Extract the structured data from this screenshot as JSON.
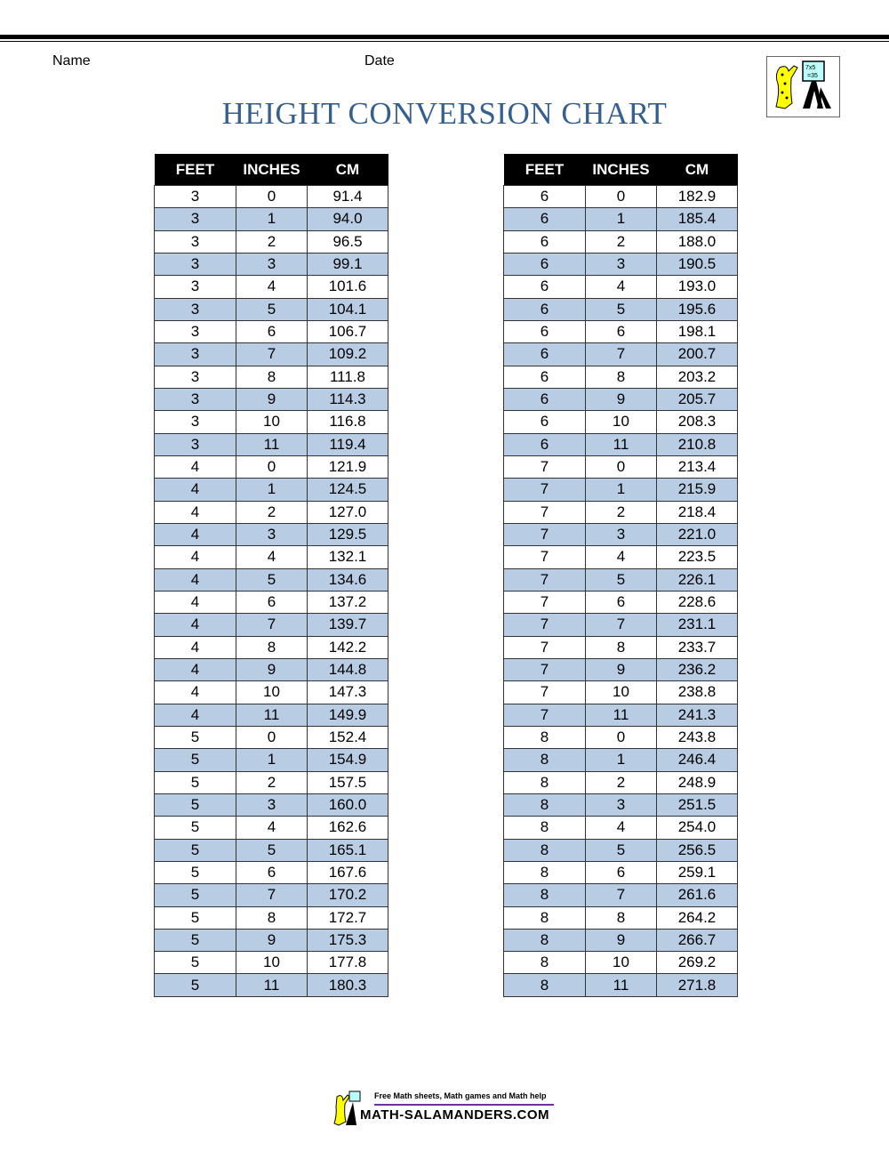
{
  "header": {
    "name_label": "Name",
    "date_label": "Date",
    "title": "HEIGHT CONVERSION CHART",
    "logo_text": "7x5 =35"
  },
  "columns": [
    "FEET",
    "INCHES",
    "CM"
  ],
  "left_table": [
    [
      "3",
      "0",
      "91.4"
    ],
    [
      "3",
      "1",
      "94.0"
    ],
    [
      "3",
      "2",
      "96.5"
    ],
    [
      "3",
      "3",
      "99.1"
    ],
    [
      "3",
      "4",
      "101.6"
    ],
    [
      "3",
      "5",
      "104.1"
    ],
    [
      "3",
      "6",
      "106.7"
    ],
    [
      "3",
      "7",
      "109.2"
    ],
    [
      "3",
      "8",
      "111.8"
    ],
    [
      "3",
      "9",
      "114.3"
    ],
    [
      "3",
      "10",
      "116.8"
    ],
    [
      "3",
      "11",
      "119.4"
    ],
    [
      "4",
      "0",
      "121.9"
    ],
    [
      "4",
      "1",
      "124.5"
    ],
    [
      "4",
      "2",
      "127.0"
    ],
    [
      "4",
      "3",
      "129.5"
    ],
    [
      "4",
      "4",
      "132.1"
    ],
    [
      "4",
      "5",
      "134.6"
    ],
    [
      "4",
      "6",
      "137.2"
    ],
    [
      "4",
      "7",
      "139.7"
    ],
    [
      "4",
      "8",
      "142.2"
    ],
    [
      "4",
      "9",
      "144.8"
    ],
    [
      "4",
      "10",
      "147.3"
    ],
    [
      "4",
      "11",
      "149.9"
    ],
    [
      "5",
      "0",
      "152.4"
    ],
    [
      "5",
      "1",
      "154.9"
    ],
    [
      "5",
      "2",
      "157.5"
    ],
    [
      "5",
      "3",
      "160.0"
    ],
    [
      "5",
      "4",
      "162.6"
    ],
    [
      "5",
      "5",
      "165.1"
    ],
    [
      "5",
      "6",
      "167.6"
    ],
    [
      "5",
      "7",
      "170.2"
    ],
    [
      "5",
      "8",
      "172.7"
    ],
    [
      "5",
      "9",
      "175.3"
    ],
    [
      "5",
      "10",
      "177.8"
    ],
    [
      "5",
      "11",
      "180.3"
    ]
  ],
  "right_table": [
    [
      "6",
      "0",
      "182.9"
    ],
    [
      "6",
      "1",
      "185.4"
    ],
    [
      "6",
      "2",
      "188.0"
    ],
    [
      "6",
      "3",
      "190.5"
    ],
    [
      "6",
      "4",
      "193.0"
    ],
    [
      "6",
      "5",
      "195.6"
    ],
    [
      "6",
      "6",
      "198.1"
    ],
    [
      "6",
      "7",
      "200.7"
    ],
    [
      "6",
      "8",
      "203.2"
    ],
    [
      "6",
      "9",
      "205.7"
    ],
    [
      "6",
      "10",
      "208.3"
    ],
    [
      "6",
      "11",
      "210.8"
    ],
    [
      "7",
      "0",
      "213.4"
    ],
    [
      "7",
      "1",
      "215.9"
    ],
    [
      "7",
      "2",
      "218.4"
    ],
    [
      "7",
      "3",
      "221.0"
    ],
    [
      "7",
      "4",
      "223.5"
    ],
    [
      "7",
      "5",
      "226.1"
    ],
    [
      "7",
      "6",
      "228.6"
    ],
    [
      "7",
      "7",
      "231.1"
    ],
    [
      "7",
      "8",
      "233.7"
    ],
    [
      "7",
      "9",
      "236.2"
    ],
    [
      "7",
      "10",
      "238.8"
    ],
    [
      "7",
      "11",
      "241.3"
    ],
    [
      "8",
      "0",
      "243.8"
    ],
    [
      "8",
      "1",
      "246.4"
    ],
    [
      "8",
      "2",
      "248.9"
    ],
    [
      "8",
      "3",
      "251.5"
    ],
    [
      "8",
      "4",
      "254.0"
    ],
    [
      "8",
      "5",
      "256.5"
    ],
    [
      "8",
      "6",
      "259.1"
    ],
    [
      "8",
      "7",
      "261.6"
    ],
    [
      "8",
      "8",
      "264.2"
    ],
    [
      "8",
      "9",
      "266.7"
    ],
    [
      "8",
      "10",
      "269.2"
    ],
    [
      "8",
      "11",
      "271.8"
    ]
  ],
  "colors": {
    "title": "#365f91",
    "stripe": "#b8cce4",
    "header_bg": "#000000"
  },
  "footer": {
    "tagline": "Free Math sheets, Math games and Math help",
    "site": "MATH-SALAMANDERS.COM"
  }
}
